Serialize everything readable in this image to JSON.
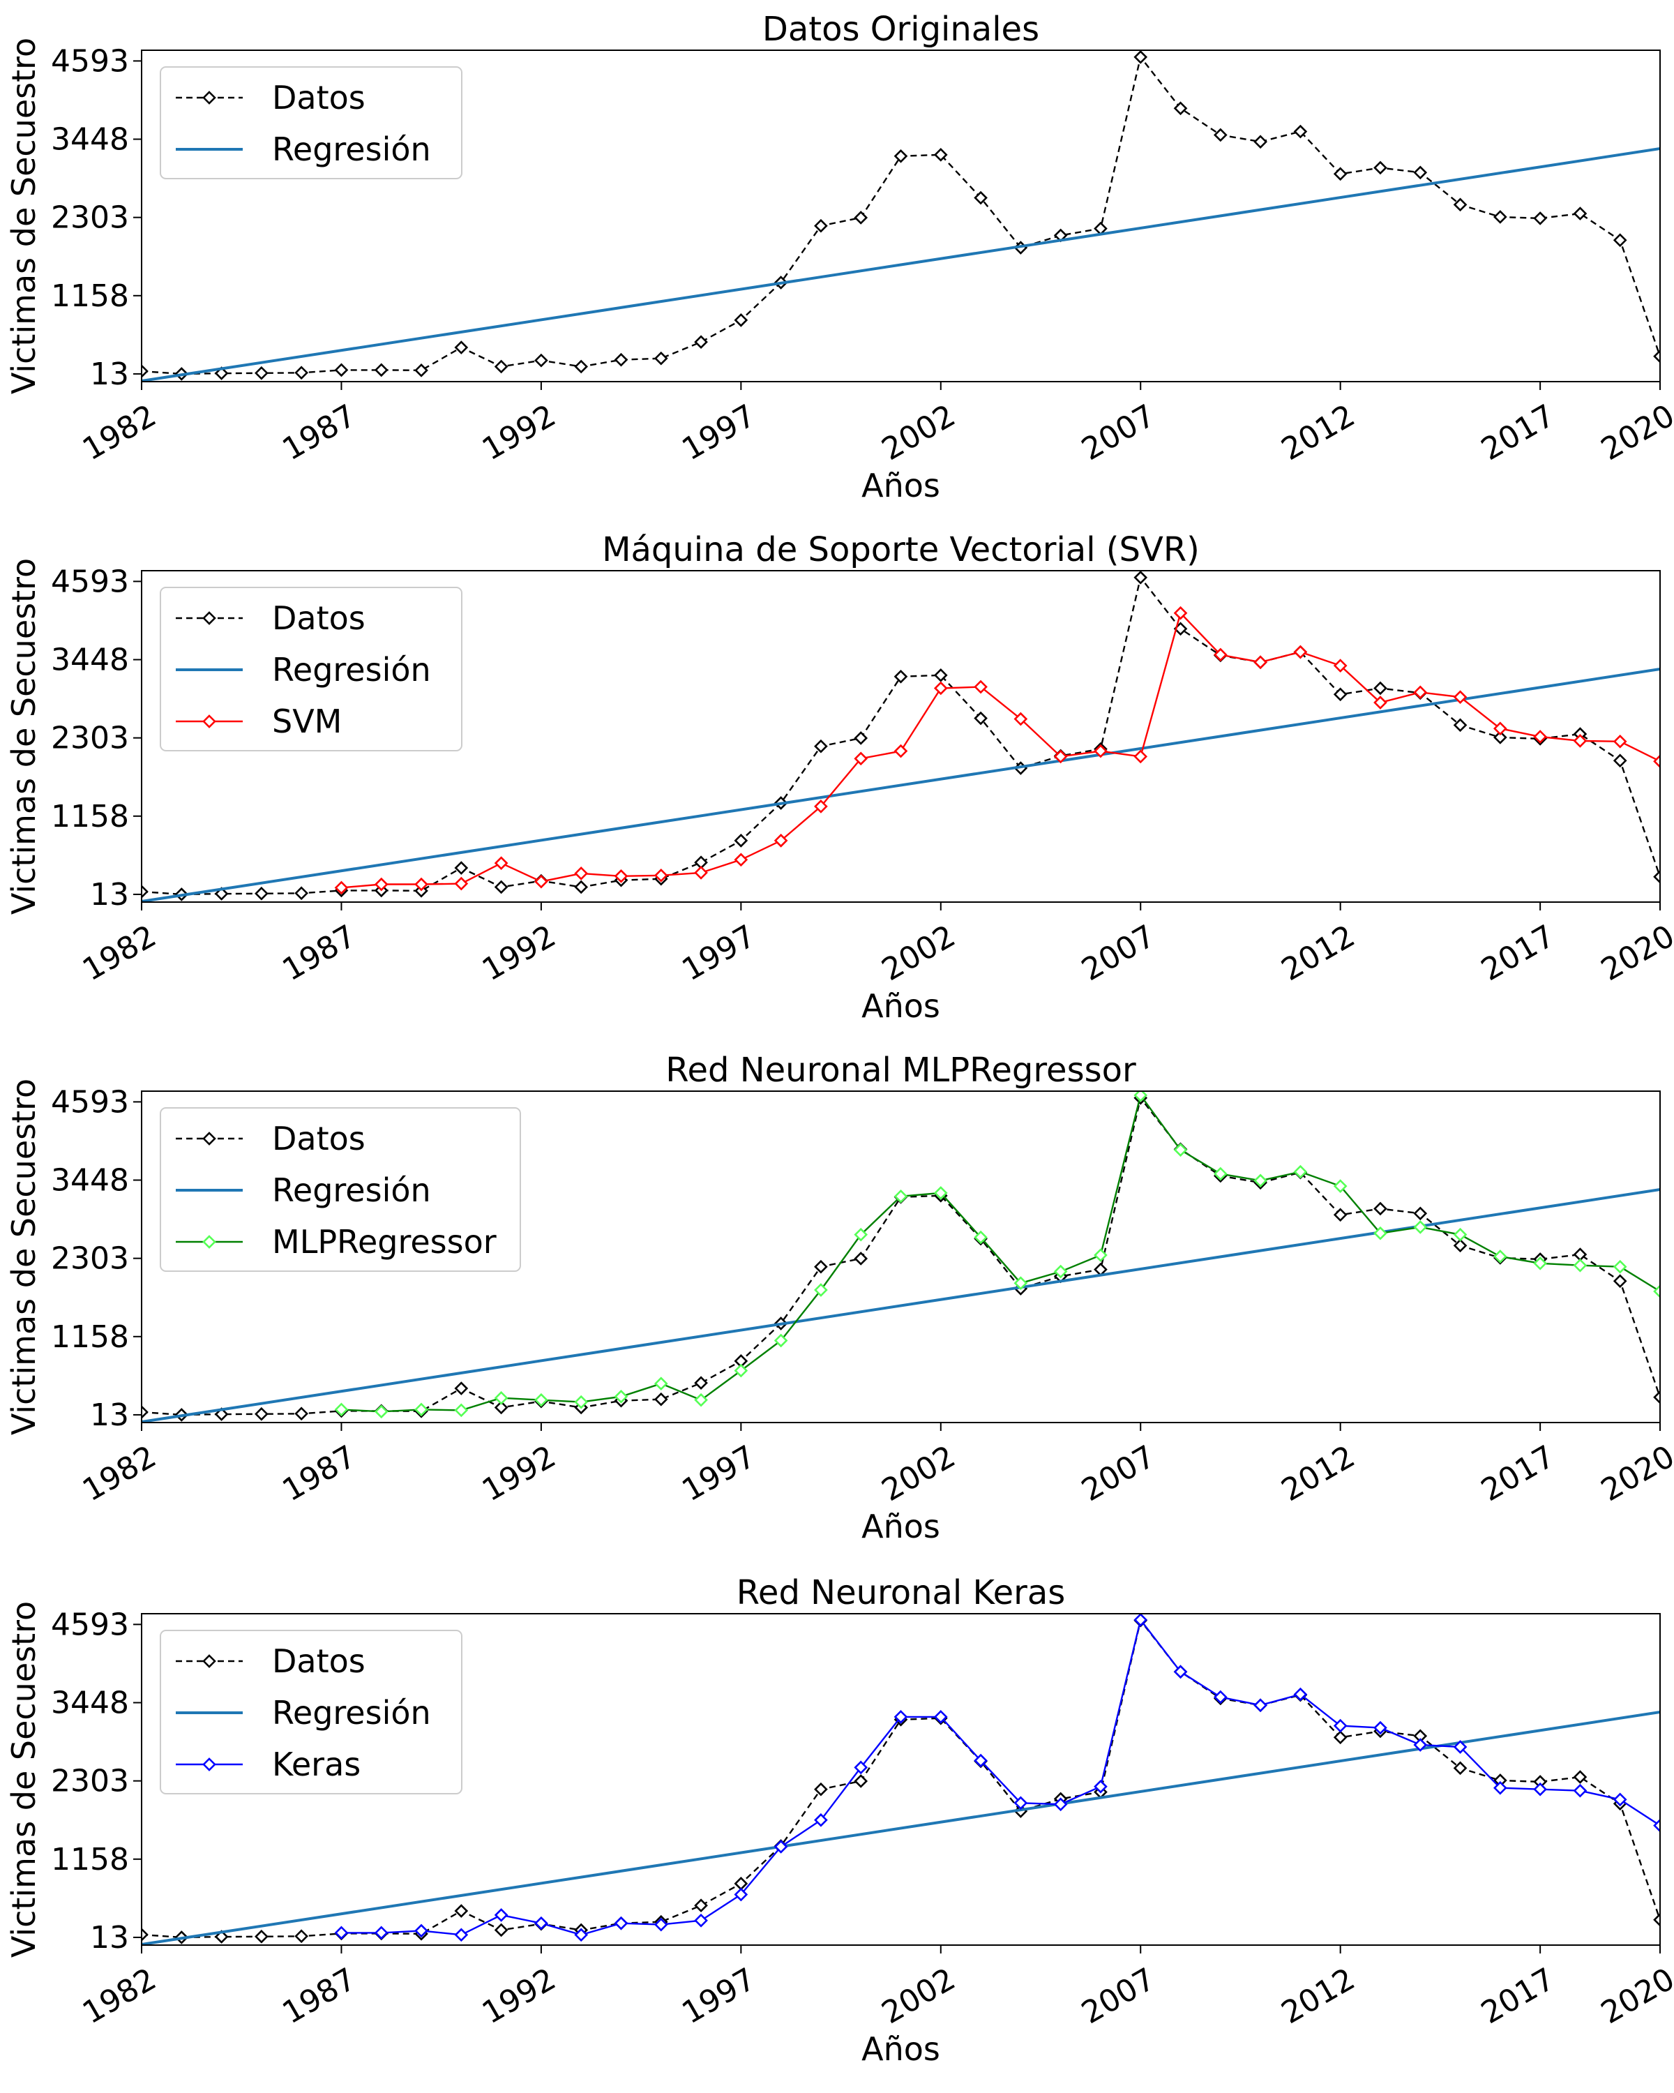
{
  "chart_data": [
    {
      "type": "line",
      "title": "Datos Originales",
      "xlabel": "Años",
      "ylabel": "Victimas de Secuestro",
      "xlim": [
        1982,
        2020
      ],
      "ylim": [
        -100,
        4750
      ],
      "xticks": [
        1982,
        1987,
        1992,
        1997,
        2002,
        2007,
        2012,
        2017,
        2020
      ],
      "yticks": [
        13,
        1158,
        2303,
        3448,
        4593
      ],
      "legend_position": "top-left",
      "series": [
        {
          "name": "Datos",
          "role": "data",
          "color": "#000000",
          "style": "dashed",
          "marker": "diamond",
          "x": [
            1982,
            1983,
            1984,
            1985,
            1986,
            1987,
            1988,
            1989,
            1990,
            1991,
            1992,
            1993,
            1994,
            1995,
            1996,
            1997,
            1998,
            1999,
            2000,
            2001,
            2002,
            2003,
            2004,
            2005,
            2006,
            2007,
            2008,
            2009,
            2010,
            2011,
            2012,
            2013,
            2014,
            2015,
            2016,
            2017,
            2018,
            2019,
            2020
          ],
          "y": [
            53,
            13,
            22,
            25,
            30,
            70,
            70,
            65,
            400,
            120,
            210,
            120,
            220,
            240,
            480,
            800,
            1350,
            2180,
            2300,
            3200,
            3220,
            2590,
            1860,
            2040,
            2140,
            4650,
            3900,
            3510,
            3410,
            3560,
            2940,
            3030,
            2960,
            2490,
            2310,
            2290,
            2360,
            1970,
            270
          ]
        },
        {
          "name": "Regresión",
          "role": "regression",
          "color": "#1f77b4",
          "style": "solid",
          "marker": "none",
          "x": [
            1982,
            2020
          ],
          "y": [
            -90,
            3310
          ]
        }
      ]
    },
    {
      "type": "line",
      "title": "Máquina de Soporte Vectorial (SVR)",
      "xlabel": "Años",
      "ylabel": "Victimas de Secuestro",
      "xlim": [
        1982,
        2020
      ],
      "ylim": [
        -100,
        4750
      ],
      "xticks": [
        1982,
        1987,
        1992,
        1997,
        2002,
        2007,
        2012,
        2017,
        2020
      ],
      "yticks": [
        13,
        1158,
        2303,
        3448,
        4593
      ],
      "legend_position": "top-left",
      "series": [
        {
          "name": "Datos",
          "role": "data",
          "color": "#000000",
          "style": "dashed",
          "marker": "diamond",
          "x": [
            1982,
            1983,
            1984,
            1985,
            1986,
            1987,
            1988,
            1989,
            1990,
            1991,
            1992,
            1993,
            1994,
            1995,
            1996,
            1997,
            1998,
            1999,
            2000,
            2001,
            2002,
            2003,
            2004,
            2005,
            2006,
            2007,
            2008,
            2009,
            2010,
            2011,
            2012,
            2013,
            2014,
            2015,
            2016,
            2017,
            2018,
            2019,
            2020
          ],
          "y": [
            53,
            13,
            22,
            25,
            30,
            70,
            70,
            65,
            400,
            120,
            210,
            120,
            220,
            240,
            480,
            800,
            1350,
            2180,
            2300,
            3200,
            3220,
            2590,
            1860,
            2040,
            2140,
            4650,
            3900,
            3510,
            3410,
            3560,
            2940,
            3030,
            2960,
            2490,
            2310,
            2290,
            2360,
            1970,
            270
          ]
        },
        {
          "name": "Regresión",
          "role": "regression",
          "color": "#1f77b4",
          "style": "solid",
          "marker": "none",
          "x": [
            1982,
            2020
          ],
          "y": [
            -90,
            3310
          ]
        },
        {
          "name": "SVM",
          "role": "model",
          "color": "#ff0000",
          "style": "solid",
          "marker": "diamond",
          "x": [
            1987,
            1988,
            1989,
            1990,
            1991,
            1992,
            1993,
            1994,
            1995,
            1996,
            1997,
            1998,
            1999,
            2000,
            2001,
            2002,
            2003,
            2004,
            2005,
            2006,
            2007,
            2008,
            2009,
            2010,
            2011,
            2012,
            2013,
            2014,
            2015,
            2016,
            2017,
            2018,
            2019,
            2020
          ],
          "y": [
            110,
            160,
            160,
            170,
            470,
            200,
            320,
            280,
            290,
            330,
            520,
            800,
            1300,
            2000,
            2110,
            3030,
            3050,
            2580,
            2030,
            2110,
            2030,
            4130,
            3520,
            3410,
            3560,
            3360,
            2820,
            2970,
            2900,
            2440,
            2320,
            2260,
            2250,
            1960
          ]
        }
      ]
    },
    {
      "type": "line",
      "title": "Red Neuronal MLPRegressor",
      "xlabel": "Años",
      "ylabel": "Victimas de Secuestro",
      "xlim": [
        1982,
        2020
      ],
      "ylim": [
        -100,
        4750
      ],
      "xticks": [
        1982,
        1987,
        1992,
        1997,
        2002,
        2007,
        2012,
        2017,
        2020
      ],
      "yticks": [
        13,
        1158,
        2303,
        3448,
        4593
      ],
      "legend_position": "top-left",
      "series": [
        {
          "name": "Datos",
          "role": "data",
          "color": "#000000",
          "style": "dashed",
          "marker": "diamond",
          "x": [
            1982,
            1983,
            1984,
            1985,
            1986,
            1987,
            1988,
            1989,
            1990,
            1991,
            1992,
            1993,
            1994,
            1995,
            1996,
            1997,
            1998,
            1999,
            2000,
            2001,
            2002,
            2003,
            2004,
            2005,
            2006,
            2007,
            2008,
            2009,
            2010,
            2011,
            2012,
            2013,
            2014,
            2015,
            2016,
            2017,
            2018,
            2019,
            2020
          ],
          "y": [
            53,
            13,
            22,
            25,
            30,
            70,
            70,
            65,
            400,
            120,
            210,
            120,
            220,
            240,
            480,
            800,
            1350,
            2180,
            2300,
            3200,
            3220,
            2590,
            1860,
            2040,
            2140,
            4650,
            3900,
            3510,
            3410,
            3560,
            2940,
            3030,
            2960,
            2490,
            2310,
            2290,
            2360,
            1970,
            270
          ]
        },
        {
          "name": "Regresión",
          "role": "regression",
          "color": "#1f77b4",
          "style": "solid",
          "marker": "none",
          "x": [
            1982,
            2020
          ],
          "y": [
            -90,
            3310
          ]
        },
        {
          "name": "MLPRegressor",
          "role": "model",
          "color": "#008000",
          "marker_color": "#55ff55",
          "style": "solid",
          "marker": "diamond",
          "x": [
            1987,
            1988,
            1989,
            1990,
            1991,
            1992,
            1993,
            1994,
            1995,
            1996,
            1997,
            1998,
            1999,
            2000,
            2001,
            2002,
            2003,
            2004,
            2005,
            2006,
            2007,
            2008,
            2009,
            2010,
            2011,
            2012,
            2013,
            2014,
            2015,
            2016,
            2017,
            2018,
            2019,
            2020
          ],
          "y": [
            90,
            60,
            90,
            80,
            260,
            230,
            200,
            280,
            470,
            230,
            660,
            1100,
            1840,
            2650,
            3210,
            3260,
            2610,
            1940,
            2110,
            2350,
            4690,
            3890,
            3540,
            3440,
            3570,
            3360,
            2670,
            2760,
            2650,
            2330,
            2230,
            2200,
            2180,
            1820
          ]
        }
      ]
    },
    {
      "type": "line",
      "title": "Red Neuronal Keras",
      "xlabel": "Años",
      "ylabel": "Victimas de Secuestro",
      "xlim": [
        1982,
        2020
      ],
      "ylim": [
        -100,
        4750
      ],
      "xticks": [
        1982,
        1987,
        1992,
        1997,
        2002,
        2007,
        2012,
        2017,
        2020
      ],
      "yticks": [
        13,
        1158,
        2303,
        3448,
        4593
      ],
      "legend_position": "top-left",
      "series": [
        {
          "name": "Datos",
          "role": "data",
          "color": "#000000",
          "style": "dashed",
          "marker": "diamond",
          "x": [
            1982,
            1983,
            1984,
            1985,
            1986,
            1987,
            1988,
            1989,
            1990,
            1991,
            1992,
            1993,
            1994,
            1995,
            1996,
            1997,
            1998,
            1999,
            2000,
            2001,
            2002,
            2003,
            2004,
            2005,
            2006,
            2007,
            2008,
            2009,
            2010,
            2011,
            2012,
            2013,
            2014,
            2015,
            2016,
            2017,
            2018,
            2019,
            2020
          ],
          "y": [
            53,
            13,
            22,
            25,
            30,
            70,
            70,
            65,
            400,
            120,
            210,
            120,
            220,
            240,
            480,
            800,
            1350,
            2180,
            2300,
            3200,
            3220,
            2590,
            1860,
            2040,
            2140,
            4650,
            3900,
            3510,
            3410,
            3560,
            2940,
            3030,
            2960,
            2490,
            2310,
            2290,
            2360,
            1970,
            270
          ]
        },
        {
          "name": "Regresión",
          "role": "regression",
          "color": "#1f77b4",
          "style": "solid",
          "marker": "none",
          "x": [
            1982,
            2020
          ],
          "y": [
            -90,
            3310
          ]
        },
        {
          "name": "Keras",
          "role": "model",
          "color": "#0000ff",
          "style": "solid",
          "marker": "diamond",
          "x": [
            1987,
            1988,
            1989,
            1990,
            1991,
            1992,
            1993,
            1994,
            1995,
            1996,
            1997,
            1998,
            1999,
            2000,
            2001,
            2002,
            2003,
            2004,
            2005,
            2006,
            2007,
            2008,
            2009,
            2010,
            2011,
            2012,
            2013,
            2014,
            2015,
            2016,
            2017,
            2018,
            2019,
            2020
          ],
          "y": [
            80,
            80,
            110,
            50,
            340,
            220,
            50,
            220,
            200,
            260,
            640,
            1340,
            1730,
            2500,
            3240,
            3240,
            2600,
            1980,
            1960,
            2220,
            4660,
            3900,
            3530,
            3410,
            3570,
            3110,
            3080,
            2830,
            2800,
            2200,
            2180,
            2160,
            2030,
            1650
          ]
        }
      ]
    }
  ]
}
